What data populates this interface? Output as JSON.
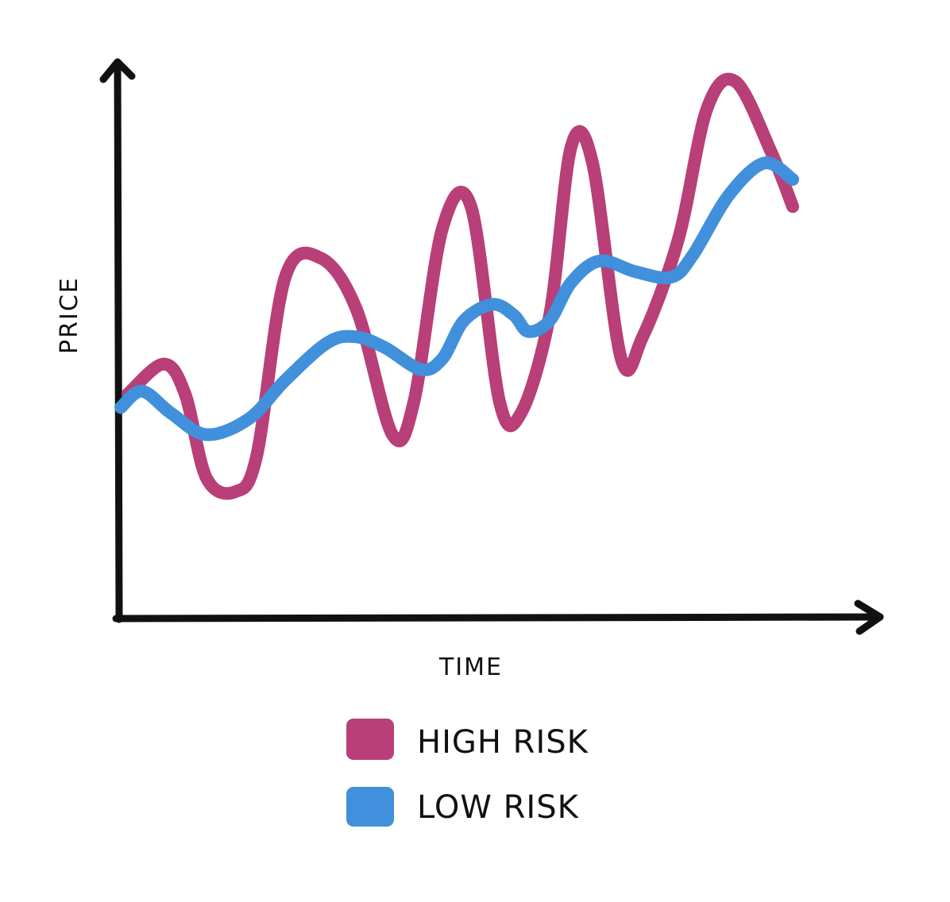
{
  "chart_data": {
    "type": "line",
    "title": "",
    "xlabel": "TIME",
    "ylabel": "PRICE",
    "xlim": [
      0,
      100
    ],
    "ylim": [
      0,
      100
    ],
    "grid": false,
    "legend_placement": "bottom-center",
    "series": [
      {
        "name": "HIGH RISK",
        "color": "#b83f78",
        "points": [
          [
            1,
            41.5
          ],
          [
            6,
            47
          ],
          [
            9,
            41.5
          ],
          [
            12,
            26
          ],
          [
            16,
            23.5
          ],
          [
            19,
            30
          ],
          [
            23,
            63
          ],
          [
            28,
            66.5
          ],
          [
            33,
            57
          ],
          [
            38,
            34
          ],
          [
            41,
            40
          ],
          [
            45,
            72
          ],
          [
            49,
            76
          ],
          [
            53,
            40
          ],
          [
            56,
            38
          ],
          [
            60,
            56
          ],
          [
            63,
            87
          ],
          [
            66,
            84
          ],
          [
            70,
            48
          ],
          [
            73,
            52
          ],
          [
            78,
            70
          ],
          [
            82,
            94
          ],
          [
            86,
            99
          ],
          [
            91,
            86
          ],
          [
            94,
            76
          ]
        ]
      },
      {
        "name": "LOW RISK",
        "color": "#4190db",
        "points": [
          [
            0,
            39
          ],
          [
            3,
            42
          ],
          [
            7,
            38
          ],
          [
            12,
            34
          ],
          [
            18,
            37
          ],
          [
            23,
            44
          ],
          [
            29,
            51
          ],
          [
            33,
            52
          ],
          [
            37,
            50
          ],
          [
            42,
            46
          ],
          [
            45,
            48
          ],
          [
            48,
            55
          ],
          [
            52,
            58
          ],
          [
            55,
            56
          ],
          [
            57,
            53
          ],
          [
            60,
            55
          ],
          [
            63,
            62
          ],
          [
            67,
            66
          ],
          [
            72,
            64
          ],
          [
            77,
            63
          ],
          [
            80,
            67
          ],
          [
            85,
            78
          ],
          [
            90,
            84
          ],
          [
            94,
            81
          ]
        ]
      }
    ]
  },
  "legend": {
    "items": [
      {
        "label": "HIGH RISK",
        "color": "#b83f78"
      },
      {
        "label": "LOW RISK",
        "color": "#4190db"
      }
    ]
  }
}
